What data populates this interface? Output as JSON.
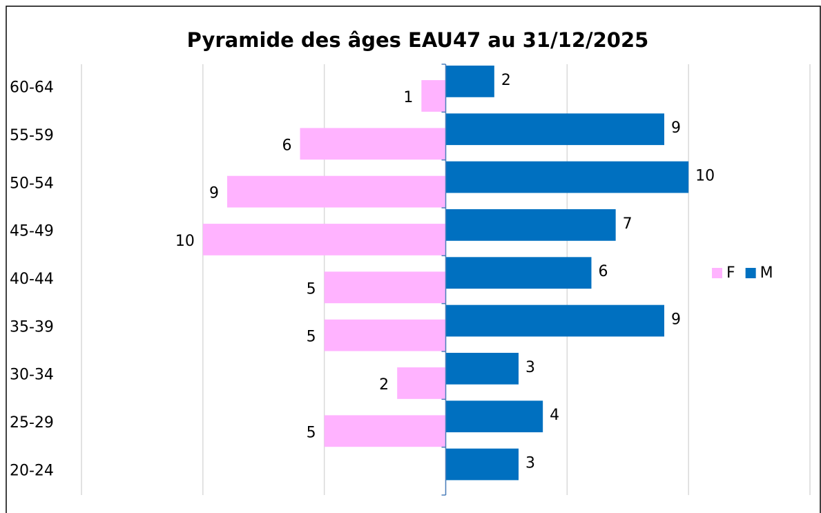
{
  "chart_data": {
    "type": "pyramid",
    "title": "Pyramide des âges EAU47 au 31/12/2025",
    "categories": [
      "60-64",
      "55-59",
      "50-54",
      "45-49",
      "40-44",
      "35-39",
      "30-34",
      "25-29",
      "20-24"
    ],
    "series": [
      {
        "name": "F",
        "color": "#ffb3ff",
        "values": [
          1,
          6,
          9,
          10,
          5,
          5,
          2,
          5,
          null
        ]
      },
      {
        "name": "M",
        "color": "#0070c0",
        "values": [
          2,
          9,
          10,
          7,
          6,
          9,
          3,
          4,
          3
        ]
      }
    ],
    "xlim": [
      -15,
      15
    ],
    "xticks": [
      -15,
      -10,
      -5,
      0,
      5,
      10,
      15
    ],
    "grid": true,
    "legend": "right"
  }
}
